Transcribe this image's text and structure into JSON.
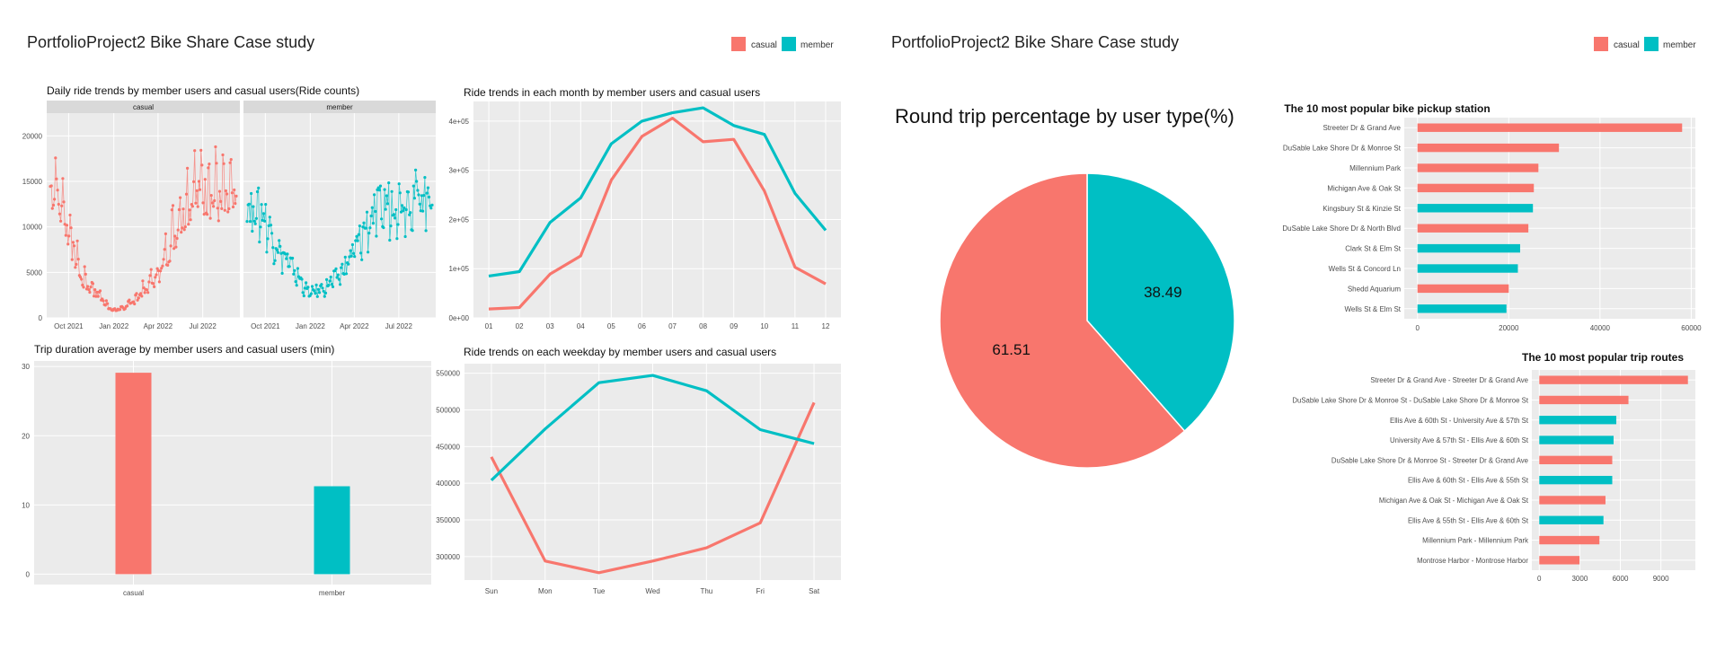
{
  "colors": {
    "casual": "#F8766D",
    "member": "#00BFC4",
    "panel_bg": "#EBEBEB",
    "strip_bg": "#D9D9D9",
    "grid": "#FFFFFF"
  },
  "dashboards": [
    {
      "title": "PortfolioProject2 Bike Share Case study",
      "legend": [
        "casual",
        "member"
      ]
    },
    {
      "title": "PortfolioProject2 Bike Share Case study",
      "legend": [
        "casual",
        "member"
      ]
    }
  ],
  "chart_data": [
    {
      "type": "line",
      "title": "Daily ride trends by member users and casual users(Ride counts)",
      "facets": [
        "casual",
        "member"
      ],
      "x_ticks": [
        "Oct 2021",
        "Jan 2022",
        "Apr 2022",
        "Jul 2022"
      ],
      "y_ticks": [
        0,
        5000,
        10000,
        15000,
        20000
      ],
      "ylim": [
        0,
        22500
      ],
      "x_domain": [
        "2021-09-01",
        "2022-08-31"
      ],
      "series": [
        {
          "name": "casual",
          "monthly_level": [
            [
              9,
              14500
            ],
            [
              10,
              10000
            ],
            [
              11,
              4000
            ],
            [
              12,
              2500
            ],
            [
              1,
              700
            ],
            [
              2,
              1200
            ],
            [
              3,
              2800
            ],
            [
              4,
              4500
            ],
            [
              5,
              9000
            ],
            [
              6,
              12500
            ],
            [
              7,
              13500
            ],
            [
              8,
              12000
            ]
          ]
        },
        {
          "name": "member",
          "monthly_level": [
            [
              9,
              12800
            ],
            [
              10,
              12000
            ],
            [
              11,
              8000
            ],
            [
              12,
              5500
            ],
            [
              1,
              2800
            ],
            [
              2,
              3500
            ],
            [
              3,
              5000
            ],
            [
              4,
              8000
            ],
            [
              5,
              11500
            ],
            [
              6,
              13000
            ],
            [
              7,
              13500
            ],
            [
              8,
              14000
            ]
          ]
        }
      ]
    },
    {
      "type": "line",
      "title": "Ride trends in each month by member users and casual users",
      "categories": [
        "01",
        "02",
        "03",
        "04",
        "05",
        "06",
        "07",
        "08",
        "09",
        "10",
        "11",
        "12"
      ],
      "y_ticks": [
        "0e+00",
        "1e+05",
        "2e+05",
        "3e+05",
        "4e+05"
      ],
      "ylim": [
        0,
        440000
      ],
      "series": [
        {
          "name": "casual",
          "values": [
            18000,
            21000,
            89000,
            126000,
            280000,
            369000,
            406000,
            358000,
            363000,
            258000,
            103000,
            69000
          ]
        },
        {
          "name": "member",
          "values": [
            85000,
            94000,
            194000,
            244000,
            354000,
            400000,
            417000,
            427000,
            391000,
            373000,
            253000,
            178000
          ]
        }
      ]
    },
    {
      "type": "bar",
      "title": "Trip duration average by member users and casual users (min)",
      "categories": [
        "casual",
        "member"
      ],
      "values": [
        29.1,
        12.7
      ],
      "y_ticks": [
        0,
        10,
        20,
        30
      ],
      "ylim": [
        -1.5,
        30.8
      ]
    },
    {
      "type": "line",
      "title": "Ride trends on each weekday by member users and casual users",
      "categories": [
        "Sun",
        "Mon",
        "Tue",
        "Wed",
        "Thu",
        "Fri",
        "Sat"
      ],
      "y_ticks": [
        300000,
        350000,
        400000,
        450000,
        500000,
        550000
      ],
      "ylim": [
        268000,
        563000
      ],
      "series": [
        {
          "name": "casual",
          "values": [
            436000,
            294000,
            278000,
            294000,
            312000,
            346000,
            510000
          ]
        },
        {
          "name": "member",
          "values": [
            404000,
            474000,
            537000,
            547000,
            526000,
            473000,
            454000
          ]
        }
      ]
    },
    {
      "type": "pie",
      "title": "Round trip percentage by user type(%)",
      "slices": [
        {
          "name": "casual",
          "value": 61.51,
          "label": "61.51"
        },
        {
          "name": "member",
          "value": 38.49,
          "label": "38.49"
        }
      ]
    },
    {
      "type": "bar",
      "orientation": "horizontal",
      "title": "The 10 most popular bike pickup station",
      "categories": [
        "Streeter Dr & Grand Ave",
        "DuSable Lake Shore Dr & Monroe St",
        "Millennium Park",
        "Michigan Ave & Oak St",
        "Kingsbury St & Kinzie St",
        "DuSable Lake Shore Dr & North Blvd",
        "Clark St & Elm St",
        "Wells St & Concord Ln",
        "Shedd Aquarium",
        "Wells St & Elm St"
      ],
      "values": [
        58000,
        31000,
        26500,
        25500,
        25300,
        24300,
        22500,
        22000,
        20000,
        19500
      ],
      "groups": [
        "casual",
        "casual",
        "casual",
        "casual",
        "member",
        "casual",
        "member",
        "member",
        "casual",
        "member"
      ],
      "x_ticks": [
        0,
        20000,
        40000,
        60000
      ],
      "xlim": [
        -2900,
        60900
      ]
    },
    {
      "type": "bar",
      "orientation": "horizontal",
      "title": "The 10 most popular trip routes",
      "categories": [
        "Streeter Dr & Grand Ave - Streeter Dr & Grand Ave",
        "DuSable Lake Shore Dr & Monroe St - DuSable Lake Shore Dr & Monroe St",
        "Ellis Ave & 60th St - University Ave & 57th St",
        "University Ave & 57th St - Ellis Ave & 60th St",
        "DuSable Lake Shore Dr & Monroe St - Streeter Dr & Grand Ave",
        "Ellis Ave & 60th St - Ellis Ave & 55th St",
        "Michigan Ave & Oak St - Michigan Ave & Oak St",
        "Ellis Ave & 55th St - Ellis Ave & 60th St",
        "Millennium Park - Millennium Park",
        "Montrose Harbor - Montrose Harbor"
      ],
      "values": [
        11000,
        6600,
        5700,
        5500,
        5400,
        5400,
        4900,
        4750,
        4450,
        2980
      ],
      "groups": [
        "casual",
        "casual",
        "member",
        "member",
        "casual",
        "member",
        "casual",
        "member",
        "casual",
        "casual"
      ],
      "x_ticks": [
        0,
        3000,
        6000,
        9000
      ],
      "xlim": [
        -550,
        11550
      ]
    }
  ]
}
